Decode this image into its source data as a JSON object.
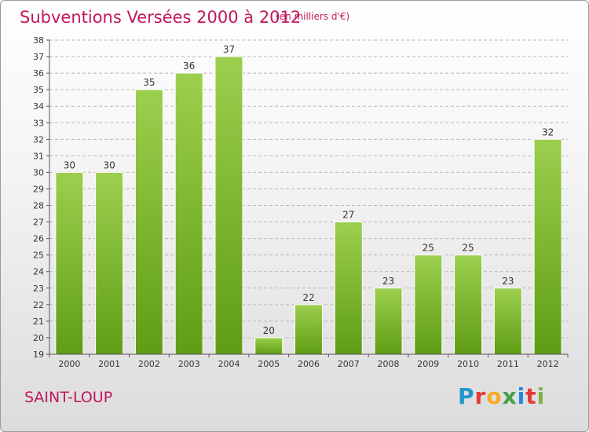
{
  "header": {
    "title": "Subventions Versées 2000 à 2012",
    "subtitle": "(en milliers d'€)"
  },
  "footer": {
    "commune": "SAINT-LOUP",
    "brand": "Proxiti",
    "brand_letters": [
      {
        "ch": "P",
        "color": "#2196c9"
      },
      {
        "ch": "r",
        "color": "#e53935"
      },
      {
        "ch": "o",
        "color": "#f9a825"
      },
      {
        "ch": "x",
        "color": "#43a047"
      },
      {
        "ch": "i",
        "color": "#1e88e5"
      },
      {
        "ch": "t",
        "color": "#e53935"
      },
      {
        "ch": "i",
        "color": "#7cb342"
      }
    ]
  },
  "chart_data": {
    "type": "bar",
    "categories": [
      "2000",
      "2001",
      "2002",
      "2003",
      "2004",
      "2005",
      "2006",
      "2007",
      "2008",
      "2009",
      "2010",
      "2011",
      "2012"
    ],
    "values": [
      30,
      30,
      35,
      36,
      37,
      20,
      22,
      27,
      23,
      25,
      25,
      23,
      32
    ],
    "title": "Subventions Versées 2000 à 2012",
    "subtitle": "(en milliers d'€)",
    "xlabel": "",
    "ylabel": "",
    "ylim": [
      19,
      38
    ],
    "yticks": [
      19,
      20,
      21,
      22,
      23,
      24,
      25,
      26,
      27,
      28,
      29,
      30,
      31,
      32,
      33,
      34,
      35,
      36,
      37,
      38
    ],
    "grid": "horizontal dashed",
    "legend": "none",
    "colors": {
      "bar_top": "#9ccf4e",
      "bar_bottom": "#5f9d14",
      "grid": "#b8b8b8"
    }
  }
}
